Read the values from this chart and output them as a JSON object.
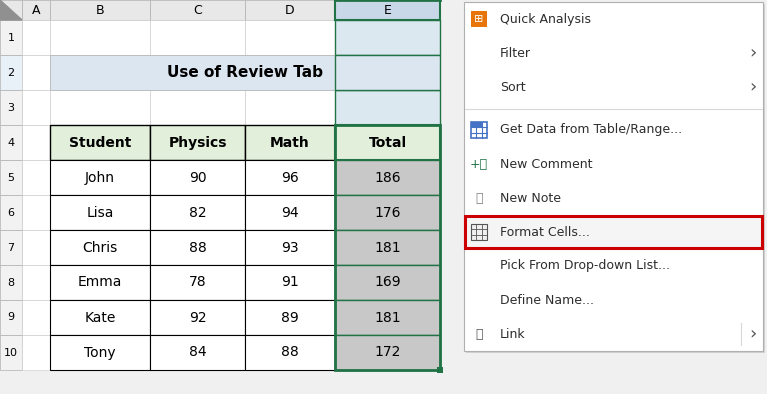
{
  "title": "Use of Review Tab",
  "title_bg": "#dce6f1",
  "header_bg": "#e2efda",
  "col_header_selected_bg": "#c8d8e8",
  "total_col_data_bg": "#c8c8c8",
  "columns": [
    "Student",
    "Physics",
    "Math",
    "Total"
  ],
  "rows": [
    [
      "John",
      "90",
      "96",
      "186"
    ],
    [
      "Lisa",
      "82",
      "94",
      "176"
    ],
    [
      "Chris",
      "88",
      "93",
      "181"
    ],
    [
      "Emma",
      "78",
      "91",
      "169"
    ],
    [
      "Kate",
      "92",
      "89",
      "181"
    ],
    [
      "Tony",
      "84",
      "88",
      "172"
    ]
  ],
  "excel_bg": "#f0f0f0",
  "col_labels": [
    "A",
    "B",
    "C",
    "D",
    "E"
  ],
  "row_labels": [
    "1",
    "2",
    "3",
    "4",
    "5",
    "6",
    "7",
    "8",
    "9",
    "10"
  ],
  "context_menu_items": [
    {
      "text": "Quick Analysis",
      "icon": "quick",
      "has_arrow": false,
      "sep_before": false,
      "highlighted": false
    },
    {
      "text": "Filter",
      "icon": "",
      "has_arrow": true,
      "sep_before": false,
      "highlighted": false
    },
    {
      "text": "Sort",
      "icon": "",
      "has_arrow": true,
      "sep_before": false,
      "highlighted": false
    },
    {
      "text": "Get Data from Table/Range...",
      "icon": "table",
      "has_arrow": false,
      "sep_before": true,
      "highlighted": false
    },
    {
      "text": "New Comment",
      "icon": "comment",
      "has_arrow": false,
      "sep_before": false,
      "highlighted": false
    },
    {
      "text": "New Note",
      "icon": "note",
      "has_arrow": false,
      "sep_before": false,
      "highlighted": false
    },
    {
      "text": "Format Cells...",
      "icon": "format",
      "has_arrow": false,
      "sep_before": false,
      "highlighted": true
    },
    {
      "text": "Pick From Drop-down List...",
      "icon": "",
      "has_arrow": false,
      "sep_before": false,
      "highlighted": false
    },
    {
      "text": "Define Name...",
      "icon": "",
      "has_arrow": false,
      "sep_before": false,
      "highlighted": false
    },
    {
      "text": "Link",
      "icon": "link",
      "has_arrow": true,
      "sep_before": false,
      "highlighted": false
    }
  ],
  "context_menu_bg": "#ffffff",
  "context_menu_border": "#b0b0b0",
  "context_menu_text_color": "#2d2d2d",
  "highlight_border_color": "#cc0000",
  "separator_color": "#d8d8d8",
  "arrow_color": "#555555",
  "col_header_bg": "#e8e8e8",
  "row_num_bg": "#f0f0f0",
  "cell_white": "#ffffff",
  "cell_border": "#888888",
  "header_border": "#000000",
  "green_border": "#217346",
  "green_sq": "#217346"
}
